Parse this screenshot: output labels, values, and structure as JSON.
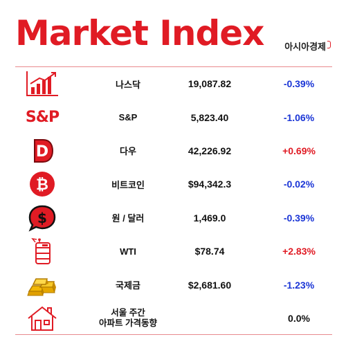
{
  "header": {
    "title": "Market Index",
    "brand": "아시아경제"
  },
  "colors": {
    "accent": "#e01b24",
    "negative": "#1a35d6",
    "positive": "#e01b24"
  },
  "rows": [
    {
      "icon": "bar-chart-icon",
      "name": "나스닥",
      "value": "19,087.82",
      "change": "-0.39%"
    },
    {
      "icon": "sp-logo-icon",
      "icon_text": "S&P",
      "name": "S&P",
      "value": "5,823.40",
      "change": "-1.06%"
    },
    {
      "icon": "dow-logo-icon",
      "icon_text": "D",
      "name": "다우",
      "value": "42,226.92",
      "change": "+0.69%"
    },
    {
      "icon": "bitcoin-icon",
      "name": "비트코인",
      "value": "$94,342.3",
      "change": "-0.02%"
    },
    {
      "icon": "dollar-bubble-icon",
      "name": "원 / 달러",
      "value": "1,469.0",
      "change": "-0.39%"
    },
    {
      "icon": "oil-barrel-icon",
      "name": "WTI",
      "value": "$78.74",
      "change": "+2.83%"
    },
    {
      "icon": "gold-bars-icon",
      "name": "국제금",
      "value": "$2,681.60",
      "change": "-1.23%"
    },
    {
      "icon": "house-icon",
      "name_line1": "서울 주간",
      "name_line2": "아파트 가격동향",
      "value": "",
      "change": "0.0%"
    }
  ]
}
